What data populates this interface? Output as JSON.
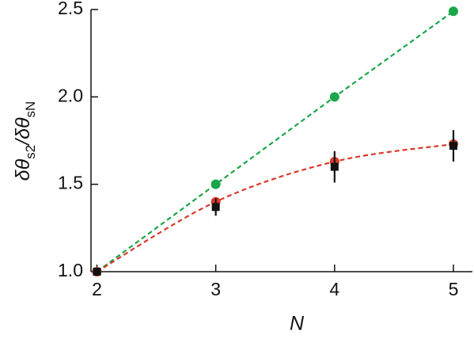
{
  "chart_data": {
    "type": "scatter",
    "x": [
      2,
      3,
      4,
      5
    ],
    "series": [
      {
        "color": "#1aa64a",
        "values": [
          1.0,
          1.5,
          2.0,
          2.49
        ],
        "marker": "circle"
      },
      {
        "color": "#d93a2b",
        "values": [
          1.0,
          1.4,
          1.63,
          1.73
        ],
        "marker": "circle"
      },
      {
        "color": "#111111",
        "values": [
          1.0,
          1.37,
          1.6,
          1.72
        ],
        "errors": [
          0.01,
          0.05,
          0.09,
          0.09
        ],
        "marker": "square"
      }
    ],
    "xlabel": "N",
    "ylabel": [
      "δθ",
      "s2",
      "/δθ",
      "sN"
    ],
    "xlim": [
      1.95,
      5.16
    ],
    "ylim": [
      1.0,
      2.5
    ],
    "xticks": [
      2,
      3,
      4,
      5
    ],
    "yticks": [
      {
        "value": 1,
        "label": "1.0"
      },
      1.5,
      {
        "value": 2,
        "label": "2.0"
      },
      2.5
    ]
  }
}
